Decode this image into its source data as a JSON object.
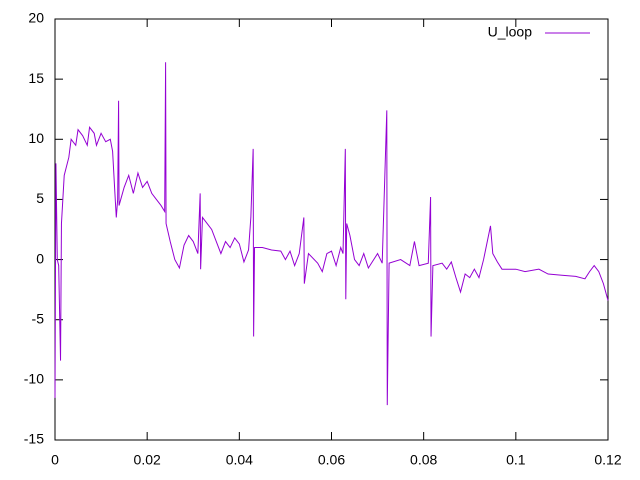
{
  "chart_data": {
    "type": "line",
    "x": [
      0,
      0.0002,
      0.0005,
      0.0008,
      0.0012,
      0.0014,
      0.002,
      0.003,
      0.0035,
      0.0045,
      0.005,
      0.006,
      0.007,
      0.0075,
      0.0085,
      0.009,
      0.01,
      0.011,
      0.012,
      0.0125,
      0.013,
      0.0133,
      0.0136,
      0.0138,
      0.0139,
      0.015,
      0.016,
      0.017,
      0.018,
      0.019,
      0.02,
      0.021,
      0.022,
      0.023,
      0.0238,
      0.024,
      0.0241,
      0.025,
      0.026,
      0.027,
      0.028,
      0.029,
      0.03,
      0.031,
      0.0315,
      0.0316,
      0.032,
      0.033,
      0.034,
      0.035,
      0.036,
      0.037,
      0.038,
      0.039,
      0.04,
      0.041,
      0.042,
      0.0425,
      0.043,
      0.0431,
      0.0433,
      0.045,
      0.047,
      0.049,
      0.05,
      0.051,
      0.052,
      0.053,
      0.054,
      0.0541,
      0.055,
      0.057,
      0.058,
      0.059,
      0.06,
      0.061,
      0.062,
      0.0625,
      0.063,
      0.0631,
      0.0633,
      0.064,
      0.065,
      0.066,
      0.067,
      0.068,
      0.07,
      0.071,
      0.072,
      0.0721,
      0.0725,
      0.075,
      0.077,
      0.078,
      0.079,
      0.081,
      0.0815,
      0.0816,
      0.082,
      0.084,
      0.085,
      0.086,
      0.087,
      0.088,
      0.089,
      0.09,
      0.091,
      0.092,
      0.093,
      0.0945,
      0.095,
      0.096,
      0.097,
      0.1,
      0.102,
      0.105,
      0.107,
      0.11,
      0.113,
      0.115,
      0.116,
      0.117,
      0.118,
      0.119,
      0.12
    ],
    "series": [
      {
        "name": "U_loop",
        "color": "#9400d3",
        "values": [
          -11.5,
          8,
          0,
          -0.5,
          -8.4,
          3,
          7,
          8.5,
          10,
          9.5,
          10.8,
          10.3,
          9.5,
          11,
          10.5,
          9.5,
          10.5,
          9.8,
          10,
          9,
          5.5,
          3.5,
          5,
          13.2,
          4.5,
          6,
          7,
          5.5,
          7.2,
          6,
          6.5,
          5.5,
          5,
          4.5,
          4,
          16.4,
          3,
          1.5,
          0,
          -0.7,
          1.2,
          2,
          1.5,
          0.5,
          5.5,
          -0.8,
          3.5,
          3,
          2.5,
          1.5,
          0.5,
          1.5,
          1,
          1.8,
          1.3,
          -0.2,
          0.8,
          3.5,
          9.2,
          -6.4,
          1,
          1,
          0.8,
          0.7,
          0,
          0.7,
          -0.5,
          0.5,
          3.5,
          -2,
          0.5,
          -0.3,
          -1,
          0.5,
          0.7,
          -0.5,
          1,
          0.5,
          9.2,
          -3.3,
          3,
          2,
          0,
          -0.5,
          0.5,
          -0.7,
          0.5,
          -0.3,
          12.4,
          -12.1,
          -0.3,
          0,
          -0.5,
          1.5,
          -0.5,
          -0.3,
          5.2,
          -6.4,
          -0.5,
          -0.3,
          -0.8,
          -0.2,
          -1.5,
          -2.7,
          -1.2,
          -1.5,
          -0.8,
          -1.5,
          0,
          2.8,
          0.5,
          -0.2,
          -0.8,
          -0.8,
          -1,
          -0.8,
          -1.2,
          -1.3,
          -1.4,
          -1.6,
          -1,
          -0.5,
          -1,
          -2,
          -3.4
        ]
      }
    ],
    "xlim": [
      0,
      0.12
    ],
    "xticks": [
      0,
      0.02,
      0.04,
      0.06,
      0.08,
      0.1,
      0.12
    ],
    "ylim": [
      -15,
      20
    ],
    "yticks": [
      -15,
      -10,
      -5,
      0,
      5,
      10,
      15,
      20
    ],
    "grid": false,
    "legend": "top-right"
  }
}
